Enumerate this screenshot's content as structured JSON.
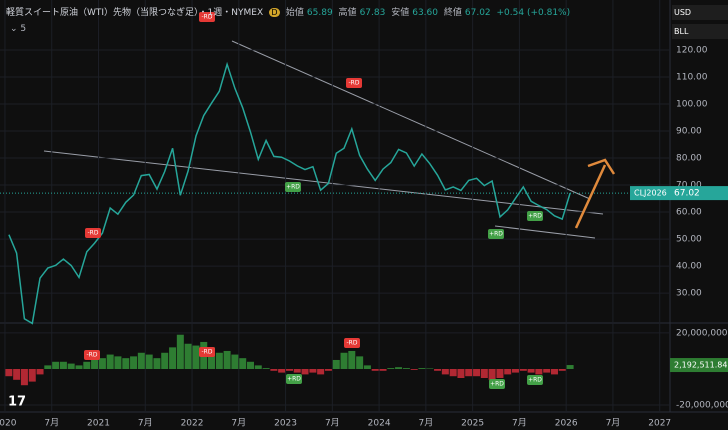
{
  "header": {
    "title": "軽質スイート原油（WTI）先物（当限つなぎ足）・1週・NYMEX",
    "badge": "D",
    "open_label": "始値",
    "open": "65.89",
    "high_label": "高値",
    "high": "67.83",
    "low_label": "安値",
    "low": "63.60",
    "close_label": "終値",
    "close": "67.02",
    "change": "+0.54 (+0.81%)",
    "indicator_count": "5",
    "currency": "USD",
    "unit": "BLL"
  },
  "chart_data": [
    {
      "type": "line",
      "x": [
        2020.042,
        2020.125,
        2020.208,
        2020.292,
        2020.375,
        2020.458,
        2020.542,
        2020.625,
        2020.708,
        2020.792,
        2020.875,
        2020.958,
        2021.042,
        2021.125,
        2021.208,
        2021.292,
        2021.375,
        2021.458,
        2021.542,
        2021.625,
        2021.708,
        2021.792,
        2021.875,
        2021.958,
        2022.042,
        2022.125,
        2022.208,
        2022.292,
        2022.375,
        2022.458,
        2022.542,
        2022.625,
        2022.708,
        2022.792,
        2022.875,
        2022.958,
        2023.042,
        2023.125,
        2023.208,
        2023.292,
        2023.375,
        2023.458,
        2023.542,
        2023.625,
        2023.708,
        2023.792,
        2023.875,
        2023.958,
        2024.042,
        2024.125,
        2024.208,
        2024.292,
        2024.375,
        2024.458,
        2024.542,
        2024.625,
        2024.708,
        2024.792,
        2024.875,
        2024.958,
        2025.042,
        2025.125,
        2025.208,
        2025.292,
        2025.375,
        2025.458,
        2025.542,
        2025.625,
        2025.708,
        2025.792,
        2025.875,
        2025.958,
        2026.042
      ],
      "series": [
        {
          "name": "CLJ2026",
          "color": "#26a69a",
          "values": [
            51.6,
            44.8,
            20.5,
            18.8,
            35.5,
            39.3,
            40.3,
            42.6,
            40.2,
            35.8,
            45.3,
            48.5,
            52.2,
            61.5,
            59.2,
            63.6,
            66.3,
            73.5,
            73.9,
            68.5,
            75.0,
            83.6,
            66.2,
            75.2,
            88.2,
            95.7,
            100.3,
            104.7,
            114.7,
            105.8,
            98.6,
            89.6,
            79.5,
            86.5,
            80.6,
            80.3,
            78.9,
            77.1,
            75.7,
            76.8,
            68.1,
            70.6,
            81.8,
            83.6,
            90.8,
            81.0,
            75.9,
            71.7,
            75.9,
            78.3,
            83.2,
            81.9,
            77.0,
            81.5,
            77.9,
            73.6,
            68.2,
            69.3,
            68.0,
            71.7,
            72.5,
            69.8,
            71.5,
            58.2,
            60.8,
            65.1,
            69.3,
            64.0,
            62.4,
            60.9,
            58.6,
            57.4,
            67.02
          ]
        }
      ],
      "last_value_label": "67.02",
      "xlim": [
        2019.947,
        2027.11
      ],
      "xticks": [
        {
          "value": 2020,
          "label": "2020"
        },
        {
          "value": 2020.5,
          "label": "7月"
        },
        {
          "value": 2021,
          "label": "2021"
        },
        {
          "value": 2021.5,
          "label": "7月"
        },
        {
          "value": 2022,
          "label": "2022"
        },
        {
          "value": 2022.5,
          "label": "7月"
        },
        {
          "value": 2023,
          "label": "2023"
        },
        {
          "value": 2023.5,
          "label": "7月"
        },
        {
          "value": 2024,
          "label": "2024"
        },
        {
          "value": 2024.5,
          "label": "7月"
        },
        {
          "value": 2025,
          "label": "2025"
        },
        {
          "value": 2025.5,
          "label": "7月"
        },
        {
          "value": 2026,
          "label": "2026"
        },
        {
          "value": 2026.5,
          "label": "7月"
        },
        {
          "value": 2027,
          "label": "2027"
        }
      ],
      "ylim": [
        19.3,
        138.5
      ],
      "yticks": [
        {
          "value": 30,
          "label": "30.00"
        },
        {
          "value": 40,
          "label": "40.00"
        },
        {
          "value": 50,
          "label": "50.00"
        },
        {
          "value": 60,
          "label": "60.00"
        },
        {
          "value": 70,
          "label": "70.00"
        },
        {
          "value": 80,
          "label": "80.00"
        },
        {
          "value": 90,
          "label": "90.00"
        },
        {
          "value": 100,
          "label": "100.00"
        },
        {
          "value": 110,
          "label": "110.00"
        },
        {
          "value": 120,
          "label": "120.00"
        }
      ],
      "annotations": [
        "-RD",
        "-RD",
        "-RD",
        "+RD",
        "+RD",
        "+RD"
      ]
    },
    {
      "type": "bar",
      "x": [
        2020.042,
        2020.125,
        2020.208,
        2020.292,
        2020.375,
        2020.458,
        2020.542,
        2020.625,
        2020.708,
        2020.792,
        2020.875,
        2020.958,
        2021.042,
        2021.125,
        2021.208,
        2021.292,
        2021.375,
        2021.458,
        2021.542,
        2021.625,
        2021.708,
        2021.792,
        2021.875,
        2021.958,
        2022.042,
        2022.125,
        2022.208,
        2022.292,
        2022.375,
        2022.458,
        2022.542,
        2022.625,
        2022.708,
        2022.792,
        2022.875,
        2022.958,
        2023.042,
        2023.125,
        2023.208,
        2023.292,
        2023.375,
        2023.458,
        2023.542,
        2023.625,
        2023.708,
        2023.792,
        2023.875,
        2023.958,
        2024.042,
        2024.125,
        2024.208,
        2024.292,
        2024.375,
        2024.458,
        2024.542,
        2024.625,
        2024.708,
        2024.792,
        2024.875,
        2024.958,
        2025.042,
        2025.125,
        2025.208,
        2025.292,
        2025.375,
        2025.458,
        2025.542,
        2025.625,
        2025.708,
        2025.792,
        2025.875,
        2025.958,
        2026.042
      ],
      "values": [
        -4000000,
        -6000000,
        -9000000,
        -7000000,
        -3000000,
        2000000,
        4000000,
        4000000,
        3000000,
        2000000,
        4000000,
        5000000,
        6000000,
        8000000,
        7000000,
        6000000,
        7000000,
        9000000,
        8000000,
        6000000,
        9000000,
        12000000,
        19000000,
        14000000,
        13000000,
        15000000,
        12000000,
        9000000,
        10000000,
        8000000,
        6000000,
        4000000,
        2000000,
        500000,
        -1000000,
        -2000000,
        -1000000,
        -2000000,
        -3000000,
        -2000000,
        -3000000,
        -1000000,
        5000000,
        9000000,
        10000000,
        7000000,
        2000000,
        -1000000,
        -1000000,
        500000,
        1000000,
        500000,
        -500000,
        500000,
        300000,
        -1000000,
        -3000000,
        -4000000,
        -5000000,
        -4000000,
        -4000000,
        -5000000,
        -6000000,
        -5000000,
        -3000000,
        -2000000,
        -1000000,
        -2000000,
        -3000000,
        -2000000,
        -3000000,
        -1000000,
        2192511.84
      ],
      "last_value_label": "2,192,511.84",
      "up_color": "#2e7d32",
      "down_color": "#b22833",
      "ylim": [
        -23300000,
        24400000
      ],
      "yticks": [
        {
          "value": -20000000,
          "label": "-20,000,000.00"
        },
        {
          "value": 20000000,
          "label": "20,000,000.00"
        }
      ],
      "annotations": [
        "-RD",
        "-RD",
        "-RD",
        "+RD",
        "+RD",
        "+RD"
      ]
    }
  ]
}
